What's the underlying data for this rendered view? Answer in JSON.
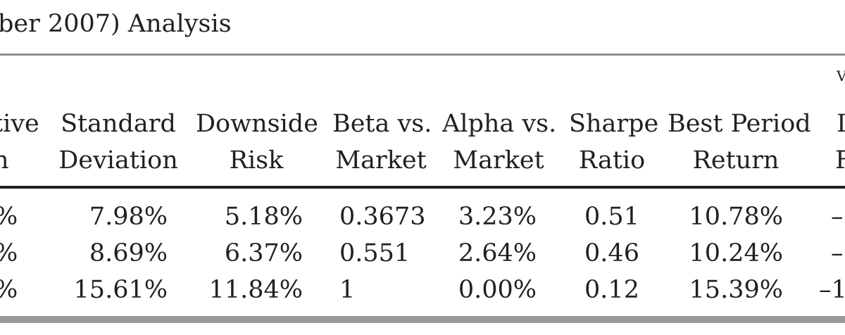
{
  "caption": "ber 2007) Analysis",
  "headers": [
    {
      "line1": "tive",
      "line2": "n"
    },
    {
      "line1": "Standard",
      "line2": "Deviation"
    },
    {
      "line1": "Downside",
      "line2": "Risk"
    },
    {
      "line1": "Beta vs.",
      "line2": "Market"
    },
    {
      "line1": "Alpha vs.",
      "line2": "Market"
    },
    {
      "line1": "Sharpe",
      "line2": "Ratio"
    },
    {
      "line1": "Best Period",
      "line2": "Return"
    },
    {
      "line0": "V",
      "line1": "I",
      "line2": "F"
    }
  ],
  "rows": [
    {
      "c0": "%",
      "c1": "7.98%",
      "c2": "5.18%",
      "c3": "0.3673",
      "c4": "3.23%",
      "c5": "0.51",
      "c6": "10.78%",
      "c7": "–"
    },
    {
      "c0": "%",
      "c1": "8.69%",
      "c2": "6.37%",
      "c3": "0.551",
      "c4": "2.64%",
      "c5": "0.46",
      "c6": "10.24%",
      "c7": "–"
    },
    {
      "c0": "%",
      "c1": "15.61%",
      "c2": "11.84%",
      "c3": "1",
      "c4": "0.00%",
      "c5": "0.12",
      "c6": "15.39%",
      "c7": "–1"
    }
  ]
}
